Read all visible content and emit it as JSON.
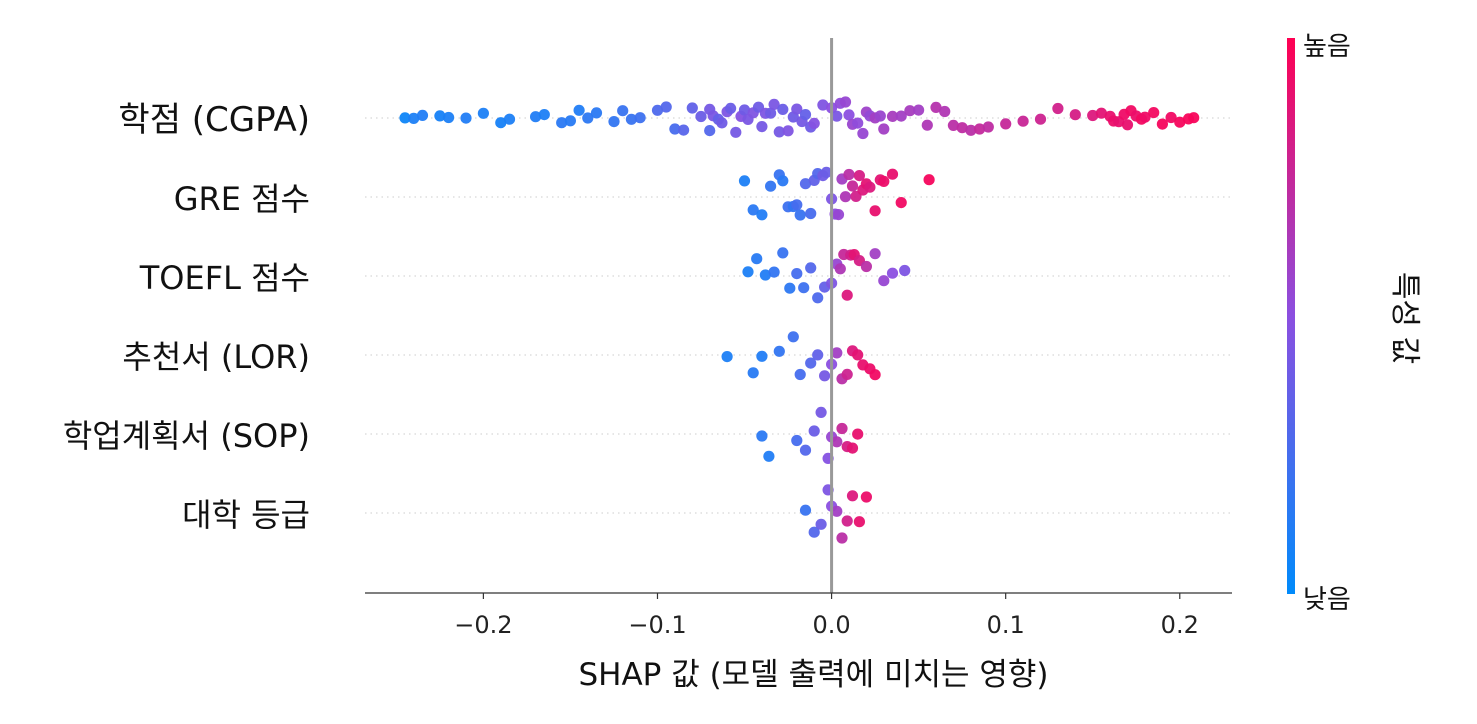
{
  "chart_data": {
    "type": "scatter",
    "subtype": "beeswarm",
    "title": "",
    "xlabel": "SHAP 값 (모델 출력에 미치는 영향)",
    "ylabel": "",
    "xlim": [
      -0.268,
      0.23
    ],
    "x_ticks": [
      -0.2,
      -0.1,
      0.0,
      0.1,
      0.2
    ],
    "x_tick_labels": [
      "−0.2",
      "−0.1",
      "0.0",
      "0.1",
      "0.2"
    ],
    "zero_line": 0.0,
    "grid": false,
    "colorbar": {
      "label": "특성 값",
      "high_label": "높음",
      "low_label": "낮음",
      "low_color": "#008bfb",
      "high_color": "#ff0052"
    },
    "features": [
      {
        "name": "학점 (CGPA)",
        "points": [
          [
            -0.245,
            0.05
          ],
          [
            -0.24,
            0.1
          ],
          [
            -0.235,
            0.12
          ],
          [
            -0.225,
            0.08
          ],
          [
            -0.22,
            0.1
          ],
          [
            -0.21,
            0.12
          ],
          [
            -0.2,
            0.1
          ],
          [
            -0.19,
            0.08
          ],
          [
            -0.185,
            0.1
          ],
          [
            -0.17,
            0.12
          ],
          [
            -0.165,
            0.1
          ],
          [
            -0.155,
            0.15
          ],
          [
            -0.15,
            0.14
          ],
          [
            -0.145,
            0.12
          ],
          [
            -0.14,
            0.16
          ],
          [
            -0.135,
            0.15
          ],
          [
            -0.125,
            0.18
          ],
          [
            -0.12,
            0.2
          ],
          [
            -0.115,
            0.2
          ],
          [
            -0.11,
            0.22
          ],
          [
            -0.1,
            0.28
          ],
          [
            -0.095,
            0.3
          ],
          [
            -0.09,
            0.26
          ],
          [
            -0.085,
            0.32
          ],
          [
            -0.08,
            0.35
          ],
          [
            -0.075,
            0.38
          ],
          [
            -0.07,
            0.3
          ],
          [
            -0.07,
            0.42
          ],
          [
            -0.068,
            0.44
          ],
          [
            -0.065,
            0.36
          ],
          [
            -0.063,
            0.4
          ],
          [
            -0.06,
            0.45
          ],
          [
            -0.058,
            0.38
          ],
          [
            -0.055,
            0.42
          ],
          [
            -0.052,
            0.48
          ],
          [
            -0.05,
            0.4
          ],
          [
            -0.048,
            0.44
          ],
          [
            -0.045,
            0.46
          ],
          [
            -0.042,
            0.4
          ],
          [
            -0.04,
            0.42
          ],
          [
            -0.038,
            0.45
          ],
          [
            -0.035,
            0.4
          ],
          [
            -0.033,
            0.44
          ],
          [
            -0.03,
            0.42
          ],
          [
            -0.028,
            0.38
          ],
          [
            -0.025,
            0.46
          ],
          [
            -0.022,
            0.4
          ],
          [
            -0.02,
            0.44
          ],
          [
            -0.017,
            0.42
          ],
          [
            -0.015,
            0.36
          ],
          [
            -0.012,
            0.4
          ],
          [
            -0.01,
            0.48
          ],
          [
            -0.005,
            0.46
          ],
          [
            0.0,
            0.5
          ],
          [
            0.003,
            0.44
          ],
          [
            0.005,
            0.52
          ],
          [
            0.008,
            0.55
          ],
          [
            0.01,
            0.5
          ],
          [
            0.012,
            0.56
          ],
          [
            0.015,
            0.52
          ],
          [
            0.018,
            0.55
          ],
          [
            0.02,
            0.58
          ],
          [
            0.022,
            0.54
          ],
          [
            0.025,
            0.6
          ],
          [
            0.028,
            0.56
          ],
          [
            0.03,
            0.6
          ],
          [
            0.035,
            0.62
          ],
          [
            0.04,
            0.6
          ],
          [
            0.045,
            0.62
          ],
          [
            0.05,
            0.6
          ],
          [
            0.055,
            0.65
          ],
          [
            0.06,
            0.68
          ],
          [
            0.065,
            0.66
          ],
          [
            0.07,
            0.7
          ],
          [
            0.075,
            0.72
          ],
          [
            0.08,
            0.7
          ],
          [
            0.085,
            0.74
          ],
          [
            0.09,
            0.72
          ],
          [
            0.1,
            0.75
          ],
          [
            0.11,
            0.76
          ],
          [
            0.12,
            0.78
          ],
          [
            0.13,
            0.8
          ],
          [
            0.14,
            0.82
          ],
          [
            0.15,
            0.85
          ],
          [
            0.155,
            0.88
          ],
          [
            0.16,
            0.9
          ],
          [
            0.162,
            0.92
          ],
          [
            0.165,
            0.9
          ],
          [
            0.168,
            0.93
          ],
          [
            0.17,
            0.9
          ],
          [
            0.172,
            0.94
          ],
          [
            0.175,
            0.92
          ],
          [
            0.178,
            0.95
          ],
          [
            0.18,
            0.93
          ],
          [
            0.185,
            0.95
          ],
          [
            0.19,
            0.96
          ],
          [
            0.195,
            0.94
          ],
          [
            0.2,
            0.96
          ],
          [
            0.205,
            0.97
          ],
          [
            0.208,
            0.97
          ]
        ]
      },
      {
        "name": "GRE 점수",
        "points": [
          [
            -0.05,
            0.1
          ],
          [
            -0.045,
            0.15
          ],
          [
            -0.04,
            0.12
          ],
          [
            -0.035,
            0.18
          ],
          [
            -0.03,
            0.2
          ],
          [
            -0.028,
            0.15
          ],
          [
            -0.025,
            0.22
          ],
          [
            -0.022,
            0.18
          ],
          [
            -0.02,
            0.25
          ],
          [
            -0.018,
            0.2
          ],
          [
            -0.015,
            0.3
          ],
          [
            -0.012,
            0.26
          ],
          [
            -0.01,
            0.35
          ],
          [
            -0.008,
            0.3
          ],
          [
            -0.005,
            0.4
          ],
          [
            -0.003,
            0.38
          ],
          [
            0.0,
            0.45
          ],
          [
            0.002,
            0.5
          ],
          [
            0.004,
            0.55
          ],
          [
            0.006,
            0.6
          ],
          [
            0.008,
            0.65
          ],
          [
            0.01,
            0.7
          ],
          [
            0.012,
            0.75
          ],
          [
            0.014,
            0.8
          ],
          [
            0.016,
            0.82
          ],
          [
            0.018,
            0.85
          ],
          [
            0.02,
            0.88
          ],
          [
            0.022,
            0.85
          ],
          [
            0.025,
            0.9
          ],
          [
            0.028,
            0.88
          ],
          [
            0.03,
            0.92
          ],
          [
            0.035,
            0.9
          ],
          [
            0.04,
            0.94
          ],
          [
            0.056,
            0.96
          ]
        ]
      },
      {
        "name": "TOEFL 점수",
        "points": [
          [
            -0.048,
            0.1
          ],
          [
            -0.043,
            0.14
          ],
          [
            -0.038,
            0.12
          ],
          [
            -0.033,
            0.18
          ],
          [
            -0.028,
            0.2
          ],
          [
            -0.024,
            0.16
          ],
          [
            -0.02,
            0.25
          ],
          [
            -0.016,
            0.22
          ],
          [
            -0.012,
            0.3
          ],
          [
            -0.008,
            0.28
          ],
          [
            -0.004,
            0.36
          ],
          [
            0.0,
            0.45
          ],
          [
            0.003,
            0.55
          ],
          [
            0.005,
            0.65
          ],
          [
            0.007,
            0.75
          ],
          [
            0.009,
            0.85
          ],
          [
            0.011,
            0.8
          ],
          [
            0.013,
            0.88
          ],
          [
            0.016,
            0.82
          ],
          [
            0.02,
            0.7
          ],
          [
            0.025,
            0.6
          ],
          [
            0.03,
            0.55
          ],
          [
            0.035,
            0.5
          ],
          [
            0.042,
            0.45
          ]
        ]
      },
      {
        "name": "추천서 (LOR)",
        "points": [
          [
            -0.06,
            0.1
          ],
          [
            -0.045,
            0.14
          ],
          [
            -0.04,
            0.12
          ],
          [
            -0.03,
            0.18
          ],
          [
            -0.022,
            0.22
          ],
          [
            -0.018,
            0.25
          ],
          [
            -0.012,
            0.3
          ],
          [
            -0.008,
            0.35
          ],
          [
            -0.004,
            0.42
          ],
          [
            0.0,
            0.5
          ],
          [
            0.003,
            0.6
          ],
          [
            0.006,
            0.7
          ],
          [
            0.009,
            0.78
          ],
          [
            0.012,
            0.85
          ],
          [
            0.015,
            0.88
          ],
          [
            0.018,
            0.9
          ],
          [
            0.022,
            0.92
          ],
          [
            0.025,
            0.94
          ]
        ]
      },
      {
        "name": "학업계획서 (SOP)",
        "points": [
          [
            -0.04,
            0.15
          ],
          [
            -0.036,
            0.12
          ],
          [
            -0.02,
            0.25
          ],
          [
            -0.015,
            0.3
          ],
          [
            -0.01,
            0.38
          ],
          [
            -0.006,
            0.42
          ],
          [
            -0.002,
            0.48
          ],
          [
            0.0,
            0.55
          ],
          [
            0.003,
            0.65
          ],
          [
            0.006,
            0.75
          ],
          [
            0.009,
            0.82
          ],
          [
            0.012,
            0.88
          ],
          [
            0.015,
            0.9
          ]
        ]
      },
      {
        "name": "대학 등급",
        "points": [
          [
            -0.015,
            0.2
          ],
          [
            -0.01,
            0.3
          ],
          [
            -0.006,
            0.38
          ],
          [
            -0.002,
            0.45
          ],
          [
            0.0,
            0.5
          ],
          [
            0.003,
            0.6
          ],
          [
            0.006,
            0.7
          ],
          [
            0.009,
            0.8
          ],
          [
            0.012,
            0.85
          ],
          [
            0.016,
            0.9
          ],
          [
            0.02,
            0.92
          ]
        ]
      }
    ]
  }
}
